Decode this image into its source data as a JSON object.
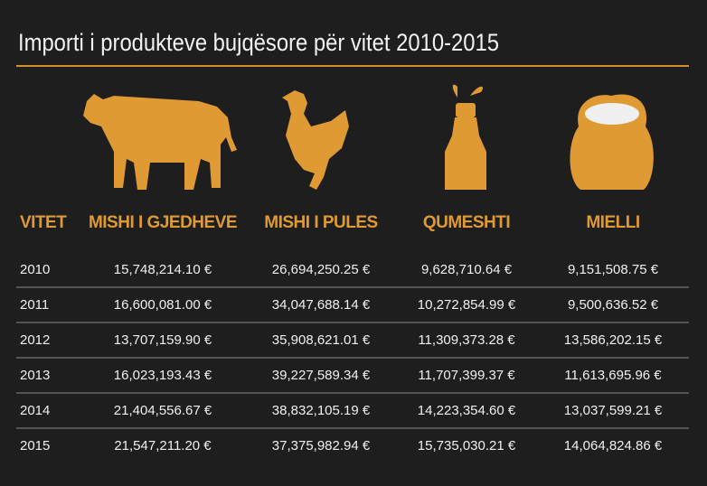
{
  "title": "Importi i produkteve bujqësore për vitet 2010-2015",
  "table": {
    "header": [
      "VITET",
      "MISHI I GJEDHEVE",
      "MISHI I PULES",
      "QUMESHTI",
      "MIELLI"
    ],
    "rows": [
      [
        "2010",
        "15,748,214.10 €",
        "26,694,250.25 €",
        "9,628,710.64 €",
        "9,151,508.75 €"
      ],
      [
        "2011",
        "16,600,081.00 €",
        "34,047,688.14 €",
        "10,272,854.99 €",
        "9,500,636.52 €"
      ],
      [
        "2012",
        "13,707,159.90 €",
        "35,908,621.01 €",
        "11,309,373.28 €",
        "13,586,202.15 €"
      ],
      [
        "2013",
        "16,023,193.43 €",
        "39,227,589.34 €",
        "11,707,399.37 €",
        "11,613,695.96 €"
      ],
      [
        "2014",
        "21,404,556.67 €",
        "38,832,105.19 €",
        "14,223,354.60 €",
        "13,037,599.21 €"
      ],
      [
        "2015",
        "21,547,211.20 €",
        "37,375,982.94 €",
        "15,735,030.21 €",
        "14,064,824.86 €"
      ]
    ]
  }
}
